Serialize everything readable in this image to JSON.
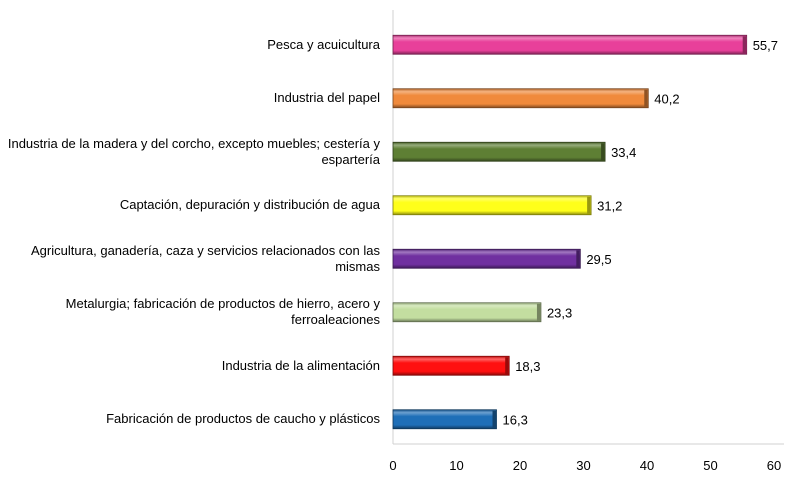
{
  "chart_data": {
    "type": "bar",
    "orientation": "horizontal",
    "title": "",
    "xlabel": "",
    "ylabel": "",
    "categories": [
      "Pesca y acuicultura",
      "Industria del papel",
      "Industria de la madera y del corcho, excepto muebles; cestería y espartería",
      "Captación, depuración y distribución de agua",
      "Agricultura, ganadería, caza y servicios relacionados con las mismas",
      "Metalurgia; fabricación de productos de hierro, acero y ferroaleaciones",
      "Industria de la alimentación",
      "Fabricación de productos de caucho y plásticos"
    ],
    "values": [
      55.7,
      40.2,
      33.4,
      31.2,
      29.5,
      23.3,
      18.3,
      16.3
    ],
    "value_labels": [
      "55,7",
      "40,2",
      "33,4",
      "31,2",
      "29,5",
      "23,3",
      "18,3",
      "16,3"
    ],
    "colors": [
      "#E8409A",
      "#F08A3C",
      "#5E7F34",
      "#FFFF1A",
      "#7030A0",
      "#C3DEA0",
      "#FF1010",
      "#1F6FB8"
    ],
    "xlim": [
      0,
      60
    ],
    "xticks": [
      0,
      10,
      20,
      30,
      40,
      50,
      60
    ],
    "grid": false,
    "legend": "none"
  }
}
